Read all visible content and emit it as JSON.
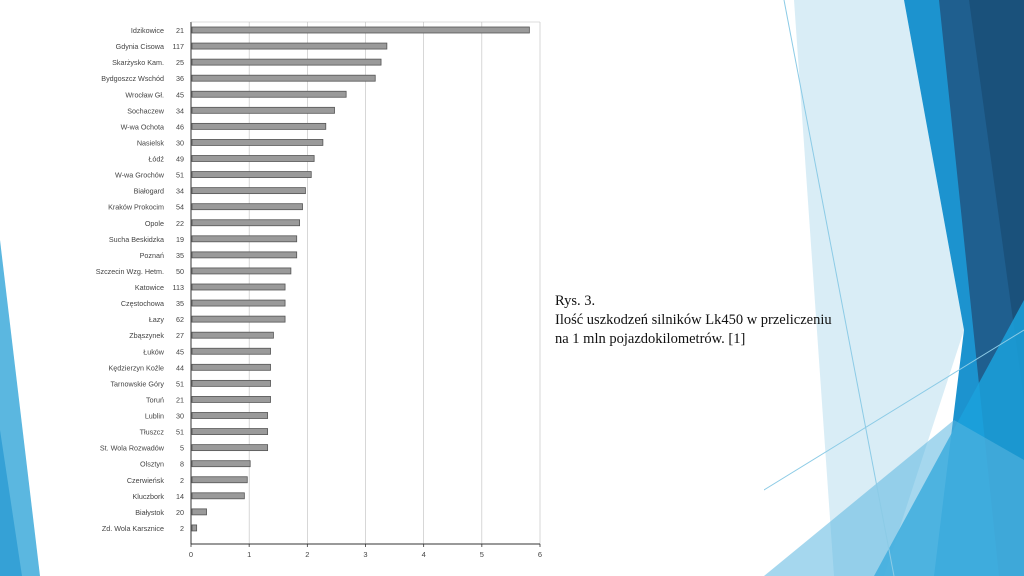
{
  "colors": {
    "bar_fill": "#9a9a9a",
    "bar_edge": "#555555",
    "axis": "#333333",
    "grid": "#bdbdbd",
    "accent_light": "#5bb7e0",
    "accent_mid": "#1c93cf",
    "accent_dark": "#1f5f8f"
  },
  "caption": {
    "line1": "Rys. 3.",
    "line2": "Ilość uszkodzeń silników Lk450 w przeliczeniu",
    "line3": "na 1 mln pojazdokilometrów. [1]"
  },
  "chart_data": {
    "type": "bar",
    "orientation": "horizontal",
    "title": "",
    "xlabel": "",
    "ylabel": "",
    "xlim": [
      0,
      6
    ],
    "x_ticks": [
      "0",
      "1",
      "2",
      "3",
      "4",
      "5",
      "6"
    ],
    "grid": true,
    "categories": [
      "Idzikowice",
      "Gdynia Cisowa",
      "Skarżysko Kam.",
      "Bydgoszcz Wschód",
      "Wrocław Gł.",
      "Sochaczew",
      "W-wa Ochota",
      "Nasielsk",
      "Łódź",
      "W-wa Grochów",
      "Białogard",
      "Kraków Prokocim",
      "Opole",
      "Sucha Beskidzka",
      "Poznań",
      "Szczecin Wzg. Hetm.",
      "Katowice",
      "Częstochowa",
      "Łazy",
      "Zbąszynek",
      "Łuków",
      "Kędzierzyn Koźle",
      "Tarnowskie Góry",
      "Toruń",
      "Lublin",
      "Tłuszcz",
      "St. Wola Rozwadów",
      "Olsztyn",
      "Czerwieńsk",
      "Kluczbork",
      "Białystok",
      "Zd. Wola Karsznice"
    ],
    "counts": [
      "21",
      "117",
      "25",
      "36",
      "45",
      "34",
      "46",
      "30",
      "49",
      "51",
      "34",
      "54",
      "22",
      "19",
      "35",
      "50",
      "113",
      "35",
      "62",
      "27",
      "45",
      "44",
      "51",
      "21",
      "30",
      "51",
      "5",
      "8",
      "2",
      "14",
      "20",
      "2"
    ],
    "values": [
      5.8,
      3.35,
      3.25,
      3.15,
      2.65,
      2.45,
      2.3,
      2.25,
      2.1,
      2.05,
      1.95,
      1.9,
      1.85,
      1.8,
      1.8,
      1.7,
      1.6,
      1.6,
      1.6,
      1.4,
      1.35,
      1.35,
      1.35,
      1.35,
      1.3,
      1.3,
      1.3,
      1.0,
      0.95,
      0.9,
      0.25,
      0.08
    ]
  }
}
